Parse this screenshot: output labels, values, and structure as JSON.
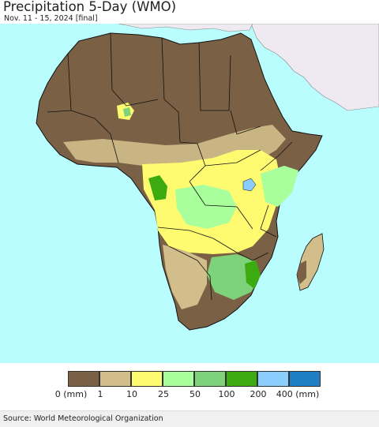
{
  "header": {
    "title": "Precipitation 5-Day (WMO)",
    "subtitle": "Nov. 11 - 15, 2024 [final]"
  },
  "legend": {
    "classes": [
      {
        "color": "#7a6145"
      },
      {
        "color": "#d1be8a"
      },
      {
        "color": "#fffb70"
      },
      {
        "color": "#a9ff9b"
      },
      {
        "color": "#7dd27a"
      },
      {
        "color": "#3cab10"
      },
      {
        "color": "#8bcdfc"
      },
      {
        "color": "#1f7ec4"
      }
    ],
    "tick_labels": [
      "0 (mm)",
      "1",
      "10",
      "25",
      "50",
      "100",
      "200",
      "400 (mm)"
    ]
  },
  "map": {
    "ocean_color": "#b9fdff",
    "non_africa_land_color": "#efeaf2",
    "border_color": "#111111"
  },
  "footer": {
    "source": "Source: World Meteorological Organization"
  }
}
